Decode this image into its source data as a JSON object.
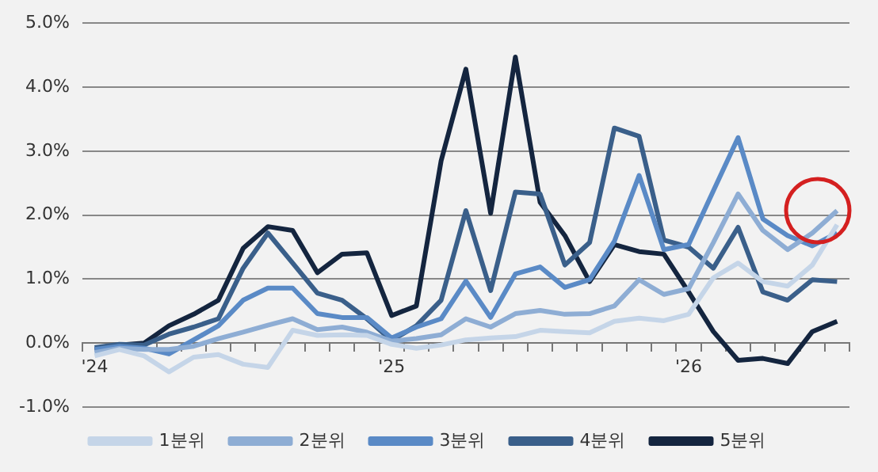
{
  "chart_data": {
    "type": "line",
    "categories": [
      "'24",
      null,
      null,
      null,
      null,
      null,
      null,
      null,
      null,
      null,
      null,
      null,
      "'25",
      null,
      null,
      null,
      null,
      null,
      null,
      null,
      null,
      null,
      null,
      null,
      "'26",
      null,
      null,
      null,
      null,
      null,
      null
    ],
    "series": [
      {
        "name": "1분위",
        "color": "#c5d5e8",
        "values": [
          -0.2,
          -0.1,
          -0.2,
          -0.45,
          -0.22,
          -0.18,
          -0.33,
          -0.38,
          0.2,
          0.12,
          0.13,
          0.12,
          -0.02,
          -0.08,
          -0.03,
          0.05,
          0.08,
          0.1,
          0.2,
          0.18,
          0.16,
          0.34,
          0.39,
          0.35,
          0.45,
          1.02,
          1.25,
          0.96,
          0.89,
          1.22,
          1.85
        ]
      },
      {
        "name": "2분위",
        "color": "#8eadd4",
        "values": [
          -0.15,
          -0.08,
          -0.1,
          -0.1,
          -0.05,
          0.07,
          0.17,
          0.28,
          0.38,
          0.21,
          0.25,
          0.17,
          0.03,
          0.07,
          0.13,
          0.38,
          0.25,
          0.46,
          0.51,
          0.45,
          0.46,
          0.58,
          0.99,
          0.76,
          0.85,
          1.57,
          2.33,
          1.76,
          1.46,
          1.72,
          2.07
        ]
      },
      {
        "name": "3분위",
        "color": "#5a8ac6",
        "values": [
          -0.1,
          -0.05,
          -0.08,
          -0.17,
          0.05,
          0.27,
          0.67,
          0.86,
          0.86,
          0.46,
          0.4,
          0.4,
          0.08,
          0.25,
          0.38,
          0.97,
          0.4,
          1.08,
          1.19,
          0.87,
          0.99,
          1.59,
          2.62,
          1.46,
          1.54,
          2.38,
          3.21,
          1.94,
          1.68,
          1.52,
          1.72
        ]
      },
      {
        "name": "4분위",
        "color": "#3a5f8a",
        "values": [
          -0.07,
          -0.02,
          -0.03,
          0.14,
          0.25,
          0.38,
          1.17,
          1.72,
          1.25,
          0.78,
          0.67,
          0.38,
          0.04,
          0.27,
          0.67,
          2.07,
          0.82,
          2.36,
          2.33,
          1.22,
          1.57,
          3.36,
          3.23,
          1.61,
          1.5,
          1.17,
          1.81,
          0.8,
          0.67,
          0.99,
          0.96
        ]
      },
      {
        "name": "5분위",
        "color": "#14253f",
        "values": [
          -0.1,
          -0.03,
          0.0,
          0.27,
          0.45,
          0.67,
          1.48,
          1.82,
          1.76,
          1.1,
          1.39,
          1.41,
          0.43,
          0.58,
          2.85,
          4.28,
          2.03,
          4.47,
          2.2,
          1.68,
          0.96,
          1.54,
          1.43,
          1.39,
          0.8,
          0.18,
          -0.27,
          -0.24,
          -0.32,
          0.18,
          0.34
        ]
      }
    ],
    "ylim": [
      -1,
      5
    ],
    "yticks": [
      {
        "value": -1,
        "label": "-1.0%"
      },
      {
        "value": 0,
        "label": "0.0%"
      },
      {
        "value": 1,
        "label": "1.0%"
      },
      {
        "value": 2,
        "label": "2.0%"
      },
      {
        "value": 3,
        "label": "3.0%"
      },
      {
        "value": 4,
        "label": "4.0%"
      },
      {
        "value": 5,
        "label": "5.0%"
      }
    ],
    "grid": "y",
    "legend": "bottom",
    "marker": "none",
    "line_style": "solid"
  }
}
